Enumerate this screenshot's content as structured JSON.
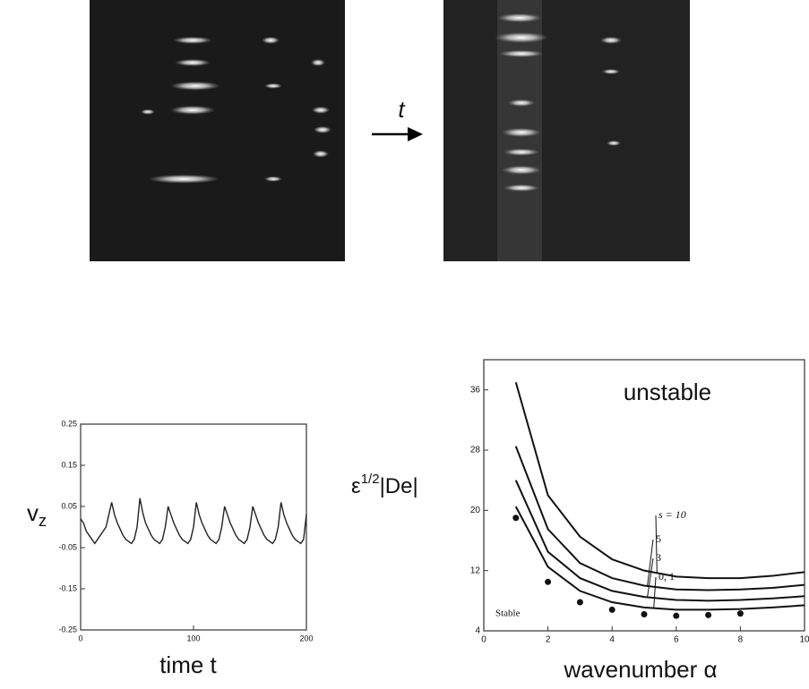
{
  "images": {
    "arrow_label": "t"
  },
  "chart_data": [
    {
      "type": "line",
      "xlabel": "time t",
      "ylabel": {
        "base": "v",
        "sub": "z"
      },
      "x": [
        0,
        2.5,
        5,
        7.5,
        10,
        12.5,
        15,
        17.5,
        20,
        22.5,
        25,
        27.5,
        30,
        32.5,
        35,
        37.5,
        40,
        42.5,
        45,
        47.5,
        50,
        52.5,
        55,
        57.5,
        60,
        62.5,
        65,
        67.5,
        70,
        72.5,
        75,
        77.5,
        80,
        82.5,
        85,
        87.5,
        90,
        92.5,
        95,
        97.5,
        100,
        102.5,
        105,
        107.5,
        110,
        112.5,
        115,
        117.5,
        120,
        122.5,
        125,
        127.5,
        130,
        132.5,
        135,
        137.5,
        140,
        142.5,
        145,
        147.5,
        150,
        152.5,
        155,
        157.5,
        160,
        162.5,
        165,
        167.5,
        170,
        172.5,
        175,
        177.5,
        180,
        182.5,
        185,
        187.5,
        190,
        192.5,
        195,
        197.5,
        200
      ],
      "series": [
        {
          "color": "#222222",
          "values": [
            0.02,
            0.01,
            -0.01,
            -0.02,
            -0.03,
            -0.04,
            -0.03,
            -0.02,
            -0.01,
            0.0,
            0.03,
            0.06,
            0.03,
            0.01,
            -0.005,
            -0.02,
            -0.03,
            -0.035,
            -0.04,
            -0.03,
            0.0,
            0.07,
            0.035,
            0.01,
            -0.005,
            -0.02,
            -0.03,
            -0.035,
            -0.04,
            -0.03,
            0.0,
            0.05,
            0.03,
            0.01,
            -0.005,
            -0.02,
            -0.03,
            -0.035,
            -0.04,
            -0.03,
            0.0,
            0.06,
            0.03,
            0.01,
            -0.005,
            -0.02,
            -0.03,
            -0.035,
            -0.04,
            -0.03,
            0.0,
            0.05,
            0.03,
            0.01,
            -0.005,
            -0.02,
            -0.03,
            -0.035,
            -0.04,
            -0.03,
            0.0,
            0.05,
            0.03,
            0.01,
            -0.005,
            -0.02,
            -0.03,
            -0.035,
            -0.04,
            -0.03,
            0.0,
            0.06,
            0.03,
            0.01,
            -0.005,
            -0.02,
            -0.03,
            -0.035,
            -0.04,
            -0.03,
            0.03
          ]
        }
      ],
      "xlim": [
        0,
        200
      ],
      "xticks": [
        0,
        100,
        200
      ],
      "ylim": [
        -0.25,
        0.25
      ],
      "yticks": [
        0.25,
        0.15,
        0.05,
        -0.05,
        -0.15,
        -0.25
      ]
    },
    {
      "type": "line",
      "xlabel": "wavenumber α",
      "ylabel": {
        "base": "ε",
        "sup": "1/2",
        "rest": "|De|"
      },
      "annotations": [
        "unstable",
        "Stable"
      ],
      "x": [
        1,
        2,
        3,
        4,
        5,
        6,
        7,
        8,
        9,
        10
      ],
      "series": [
        {
          "name": "s = 10",
          "color": "#111111",
          "values": [
            37,
            22,
            16.5,
            13.5,
            12,
            11.2,
            11,
            11,
            11.3,
            11.8
          ]
        },
        {
          "name": "5",
          "color": "#111111",
          "values": [
            28.5,
            17.5,
            13,
            11,
            10,
            9.5,
            9.4,
            9.5,
            9.7,
            10.1
          ]
        },
        {
          "name": "3",
          "color": "#111111",
          "values": [
            24,
            14.5,
            11,
            9.3,
            8.5,
            8.1,
            8,
            8.1,
            8.3,
            8.6
          ]
        },
        {
          "name": "0, 1",
          "color": "#111111",
          "values": [
            20.5,
            12.5,
            9.3,
            7.8,
            7.1,
            6.8,
            6.8,
            6.9,
            7.1,
            7.4
          ]
        }
      ],
      "markers": {
        "x": [
          1,
          2,
          3,
          4,
          5,
          6,
          7,
          8
        ],
        "values": [
          19,
          10.5,
          7.8,
          6.8,
          6.2,
          6,
          6.1,
          6.3
        ]
      },
      "xlim": [
        0,
        10
      ],
      "xticks": [
        0,
        2,
        4,
        6,
        8,
        10
      ],
      "ylim": [
        4,
        40
      ],
      "yticks": [
        4,
        12,
        20,
        28,
        36
      ]
    }
  ]
}
